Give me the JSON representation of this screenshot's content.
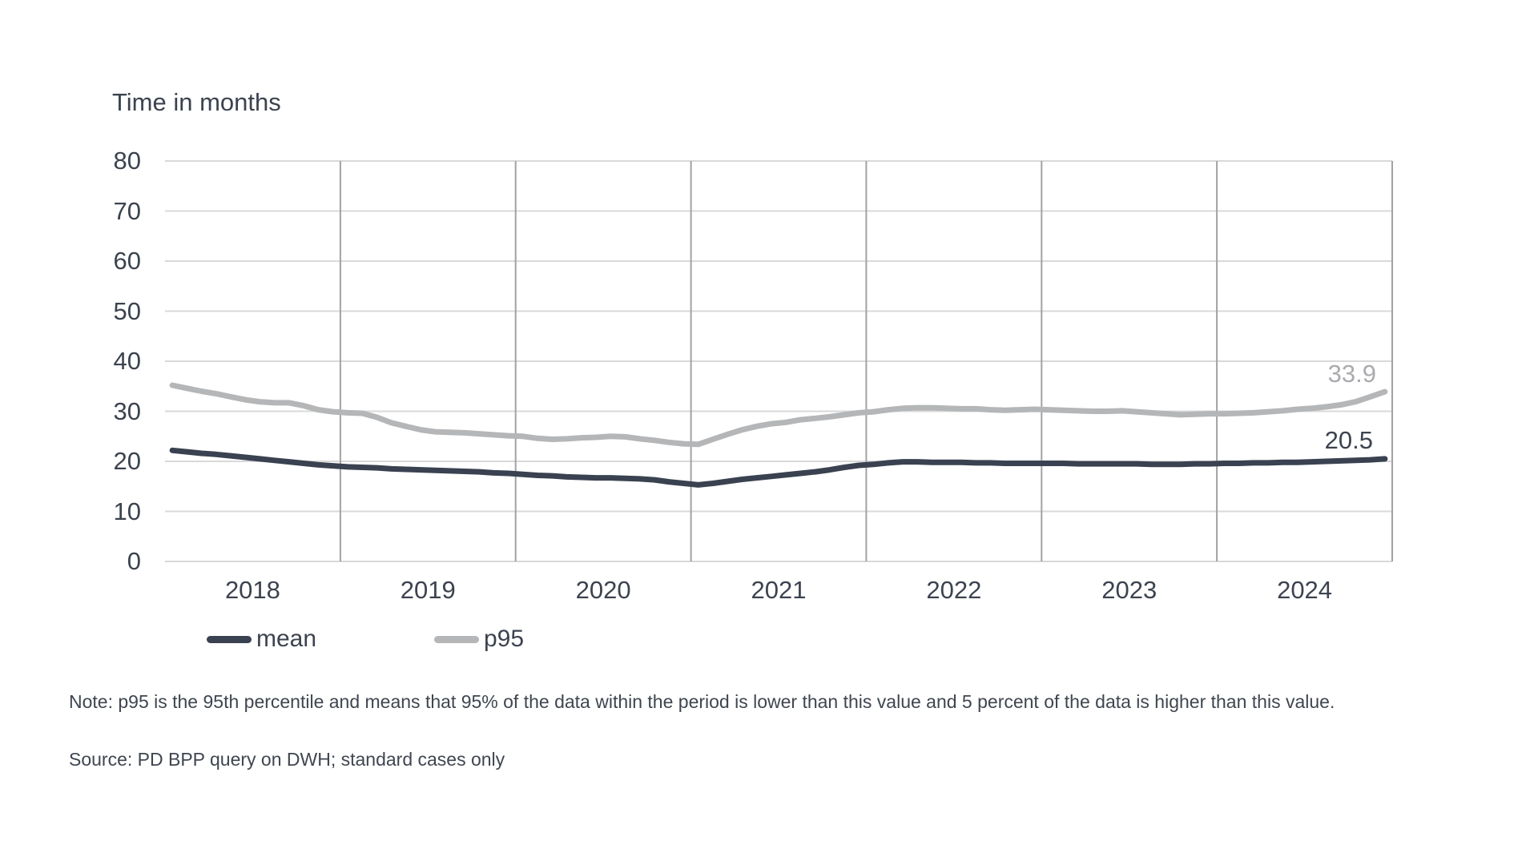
{
  "colors": {
    "mean": "#3A4251",
    "p95": "#B4B6B8",
    "grid_horizontal": "#D9D9DA",
    "grid_vertical": "#A0A2A4",
    "text": "#3C434F",
    "end_label_p95": "#A9ABAE"
  },
  "chart": {
    "title": "Time in months",
    "legend": [
      {
        "label": "mean",
        "color": "#3A4251"
      },
      {
        "label": "p95",
        "color": "#B4B6B8"
      }
    ],
    "end_labels": {
      "p95": "33.9",
      "mean": "20.5"
    },
    "note": "Note: p95 is the 95th percentile and means that 95% of the data within the period is lower than this value and 5 percent of the data is higher than this value.",
    "source": "Source: PD BPP query on DWH; standard cases only"
  },
  "chart_data": {
    "type": "line",
    "title": "Time in months",
    "x_unit": "month",
    "x_range": [
      "2018-01",
      "2024-12"
    ],
    "x_year_labels": [
      "2018",
      "2019",
      "2020",
      "2021",
      "2022",
      "2023",
      "2024"
    ],
    "ylim": [
      0,
      80
    ],
    "y_ticks": [
      0,
      10,
      20,
      30,
      40,
      50,
      60,
      70,
      80
    ],
    "grid": "horizontal light gray lines at each y tick; vertical gray lines at year boundaries",
    "legend_position": "bottom-left",
    "series": [
      {
        "name": "mean",
        "color": "#3A4251",
        "end_label": 20.5,
        "values": [
          22.2,
          21.9,
          21.6,
          21.4,
          21.1,
          20.8,
          20.5,
          20.2,
          19.9,
          19.6,
          19.3,
          19.1,
          18.9,
          18.8,
          18.7,
          18.5,
          18.4,
          18.3,
          18.2,
          18.1,
          18.0,
          17.9,
          17.7,
          17.6,
          17.4,
          17.2,
          17.1,
          16.9,
          16.8,
          16.7,
          16.7,
          16.6,
          16.5,
          16.3,
          15.9,
          15.6,
          15.3,
          15.6,
          16.0,
          16.4,
          16.7,
          17.0,
          17.3,
          17.6,
          17.9,
          18.3,
          18.8,
          19.2,
          19.4,
          19.7,
          19.9,
          19.9,
          19.8,
          19.8,
          19.8,
          19.7,
          19.7,
          19.6,
          19.6,
          19.6,
          19.6,
          19.6,
          19.5,
          19.5,
          19.5,
          19.5,
          19.5,
          19.4,
          19.4,
          19.4,
          19.5,
          19.5,
          19.6,
          19.6,
          19.7,
          19.7,
          19.8,
          19.8,
          19.9,
          20.0,
          20.1,
          20.2,
          20.3,
          20.5
        ]
      },
      {
        "name": "p95",
        "color": "#B4B6B8",
        "end_label": 33.9,
        "values": [
          35.2,
          34.6,
          34.0,
          33.5,
          32.9,
          32.3,
          31.9,
          31.7,
          31.7,
          31.1,
          30.3,
          29.9,
          29.7,
          29.6,
          28.8,
          27.7,
          27.0,
          26.3,
          25.9,
          25.8,
          25.7,
          25.5,
          25.3,
          25.1,
          25.0,
          24.6,
          24.4,
          24.5,
          24.7,
          24.8,
          25.0,
          24.9,
          24.5,
          24.2,
          23.8,
          23.5,
          23.4,
          24.4,
          25.4,
          26.3,
          27.0,
          27.5,
          27.8,
          28.3,
          28.6,
          28.9,
          29.3,
          29.7,
          29.9,
          30.3,
          30.6,
          30.7,
          30.7,
          30.6,
          30.5,
          30.5,
          30.3,
          30.2,
          30.3,
          30.4,
          30.3,
          30.2,
          30.1,
          30.0,
          30.0,
          30.1,
          29.9,
          29.7,
          29.5,
          29.3,
          29.4,
          29.5,
          29.5,
          29.6,
          29.7,
          29.9,
          30.1,
          30.4,
          30.6,
          30.9,
          31.3,
          31.9,
          32.9,
          33.9
        ]
      }
    ]
  }
}
